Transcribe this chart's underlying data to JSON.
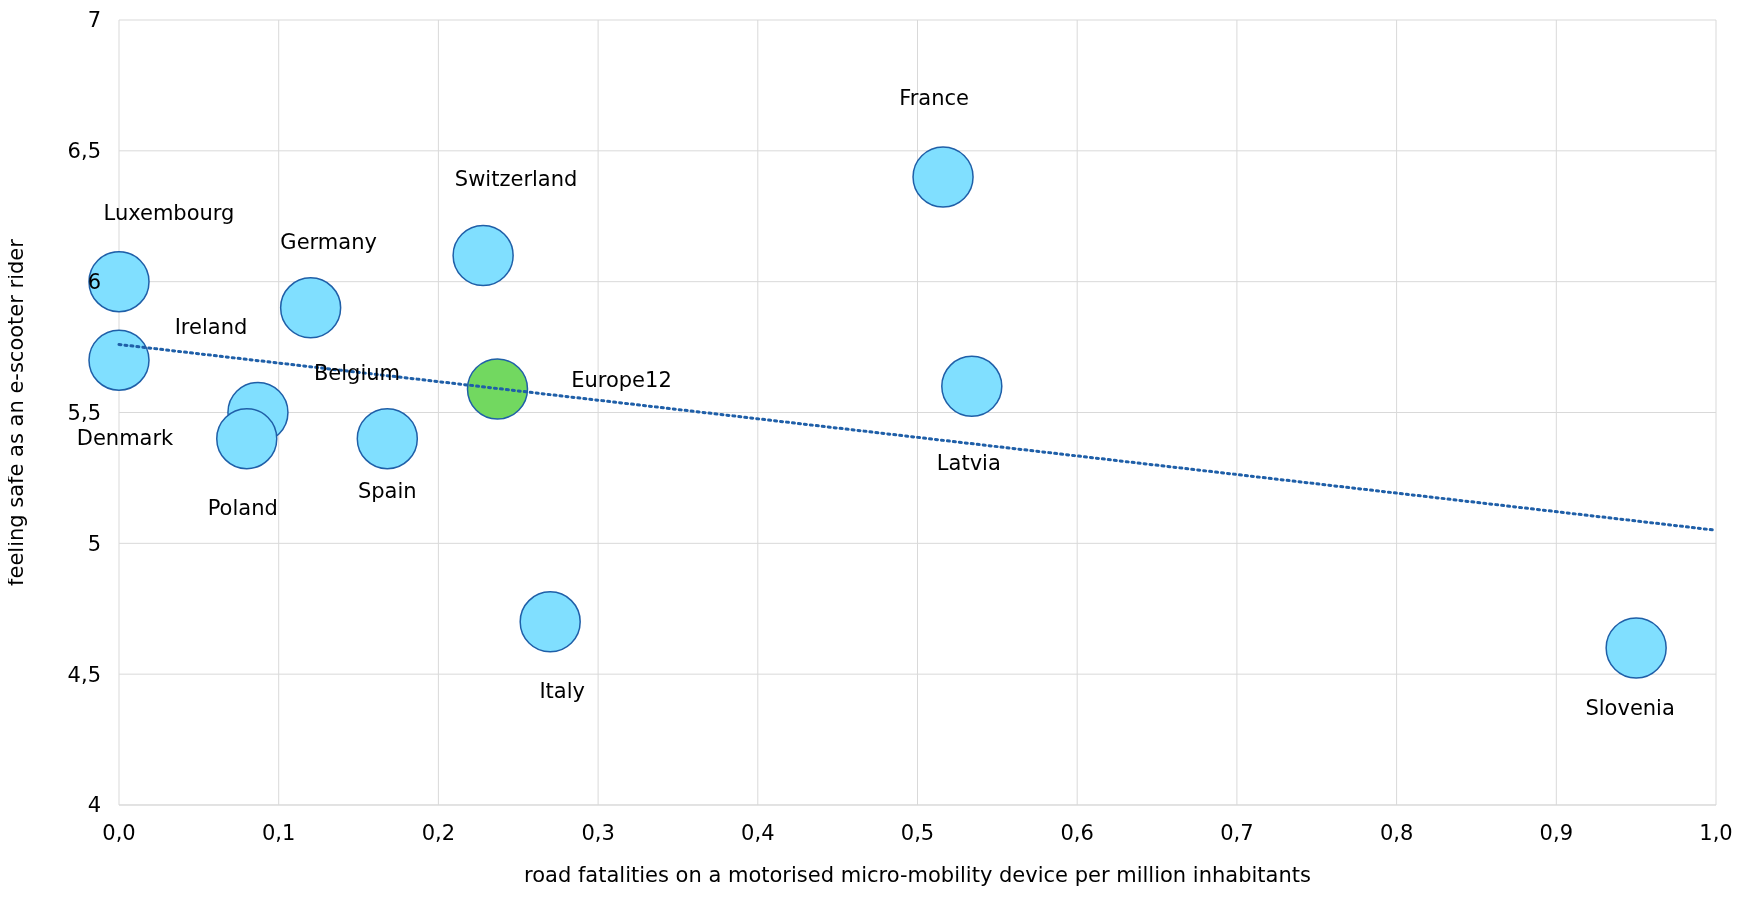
{
  "chart_data": {
    "type": "scatter",
    "xlabel": "road fatalities on a motorised micro-mobility device per million inhabitants",
    "ylabel": "feeling safe as an e-scooter rider",
    "xlim": [
      0,
      1
    ],
    "xticks": [
      {
        "value": 0,
        "label": "0,0"
      },
      {
        "value": 0.1,
        "label": "0,1"
      },
      {
        "value": 0.2,
        "label": "0,2"
      },
      {
        "value": 0.3,
        "label": "0,3"
      },
      {
        "value": 0.4,
        "label": "0,4"
      },
      {
        "value": 0.5,
        "label": "0,5"
      },
      {
        "value": 0.6,
        "label": "0,6"
      },
      {
        "value": 0.7,
        "label": "0,7"
      },
      {
        "value": 0.8,
        "label": "0,8"
      },
      {
        "value": 0.9,
        "label": "0,9"
      },
      {
        "value": 1,
        "label": "1,0"
      }
    ],
    "ylim": [
      4,
      7
    ],
    "yticks": [
      4,
      {
        "value": 4.5,
        "label": "4,5"
      },
      5,
      {
        "value": 5.5,
        "label": "5,5"
      },
      6,
      {
        "value": 6.5,
        "label": "6,5"
      },
      7
    ],
    "grid": true,
    "series": [
      {
        "x": [
          0,
          0,
          0.12,
          0.228,
          0.516,
          0.087,
          0.237,
          0.08,
          0.168,
          0.534,
          0.27,
          0.95
        ],
        "values": [
          6.0,
          5.7,
          5.9,
          6.1,
          6.4,
          5.5,
          5.59,
          5.4,
          5.4,
          5.6,
          4.7,
          4.6
        ],
        "colors": [
          "#80dfff",
          "#80dfff",
          "#80dfff",
          "#80dfff",
          "#80dfff",
          "#80dfff",
          "#72d860",
          "#80dfff",
          "#80dfff",
          "#80dfff",
          "#80dfff",
          "#80dfff"
        ]
      },
      {
        "type": "line",
        "x": [
          0,
          1
        ],
        "values": [
          5.76,
          5.05
        ],
        "color": "#1f5fa8",
        "line_style": "dotted"
      }
    ],
    "annotations": [
      "Luxembourg",
      "Ireland",
      "Germany",
      "Switzerland",
      "France",
      "Belgium",
      "Europe12",
      "Denmark",
      "Poland",
      "Spain",
      "Latvia",
      "Italy",
      "Slovenia"
    ]
  }
}
